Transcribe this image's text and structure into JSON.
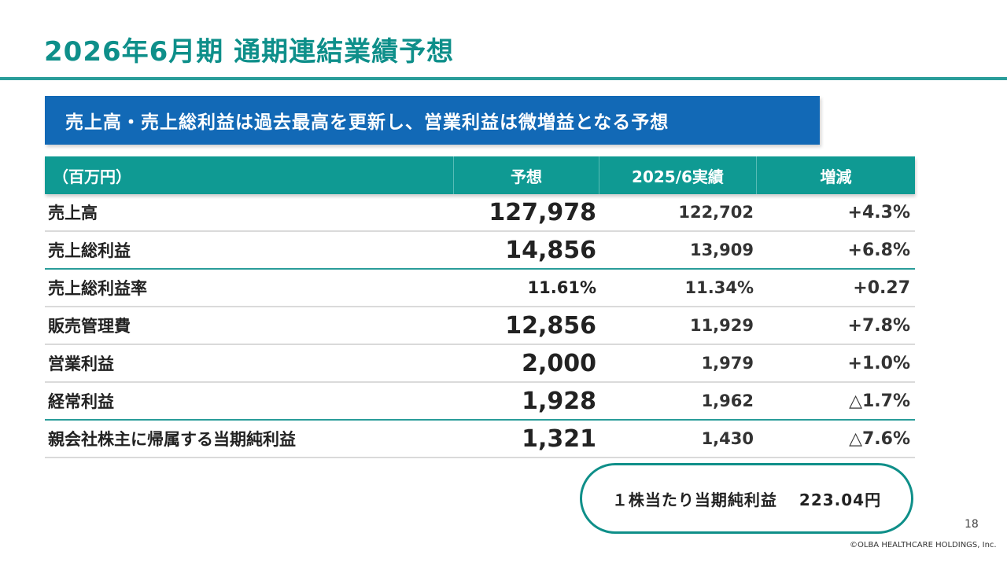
{
  "title": "2026年6月期 通期連結業績予想",
  "banner": "売上高・売上総利益は過去最高を更新し、営業利益は微増益となる予想",
  "table": {
    "headers": {
      "label": "（百万円）",
      "forecast": "予想",
      "actual": "2025/6実績",
      "change": "増減"
    },
    "rows": [
      {
        "label": "売上高",
        "forecast": "127,978",
        "actual": "122,702",
        "change": "+4.3%"
      },
      {
        "label": "売上総利益",
        "forecast": "14,856",
        "actual": "13,909",
        "change": "+6.8%"
      },
      {
        "label": "売上総利益率",
        "forecast": "11.61%",
        "actual": "11.34%",
        "change": "+0.27"
      },
      {
        "label": "販売管理費",
        "forecast": "12,856",
        "actual": "11,929",
        "change": "+7.8%"
      },
      {
        "label": "営業利益",
        "forecast": "2,000",
        "actual": "1,979",
        "change": "+1.0%"
      },
      {
        "label": "経常利益",
        "forecast": "1,928",
        "actual": "1,962",
        "change": "△1.7%"
      },
      {
        "label": "親会社株主に帰属する当期純利益",
        "forecast": "1,321",
        "actual": "1,430",
        "change": "△7.6%"
      }
    ]
  },
  "eps": {
    "label": "１株当たり当期純利益",
    "value": "223.04円"
  },
  "page_number": "18",
  "copyright": "©OLBA HEALTHCARE HOLDINGS, Inc.",
  "colors": {
    "title": "#0e8f8a",
    "banner": "#1269b6",
    "table_header": "#0f9a93",
    "accent_rule": "#2a9d9a"
  }
}
